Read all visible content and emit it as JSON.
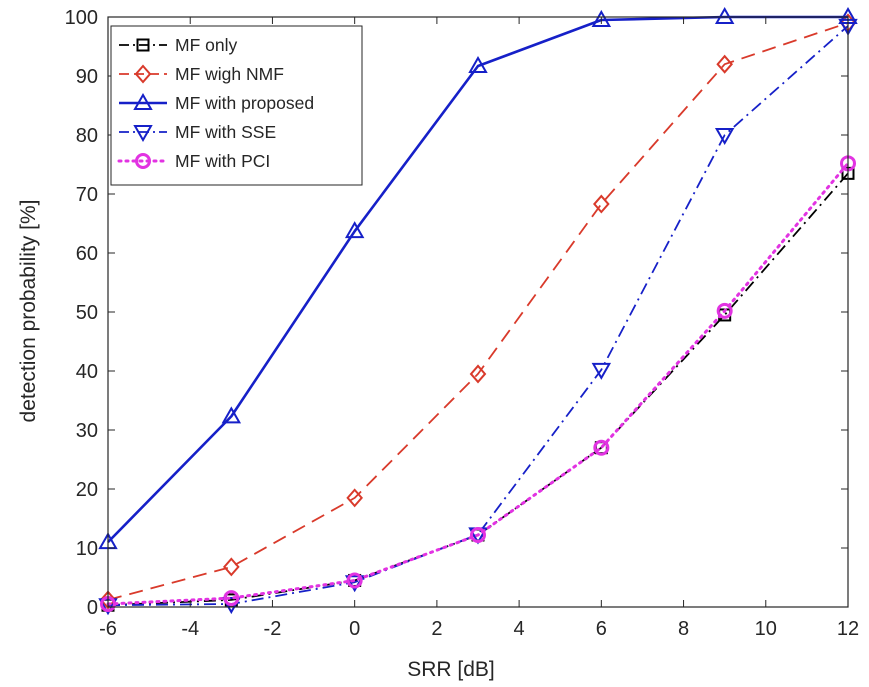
{
  "chart_data": {
    "type": "line",
    "title": "",
    "xlabel": "SRR [dB]",
    "ylabel": "detection probability [%]",
    "xlim": [
      -6,
      12
    ],
    "ylim": [
      0,
      100
    ],
    "grid": false,
    "legend_position": "top-left",
    "x": [
      -6,
      -3,
      0,
      3,
      6,
      9,
      12
    ],
    "xticks": [
      "-6",
      "-4",
      "-2",
      "0",
      "2",
      "4",
      "6",
      "8",
      "10",
      "12"
    ],
    "yticks": [
      "0",
      "10",
      "20",
      "30",
      "40",
      "50",
      "60",
      "70",
      "80",
      "90",
      "100"
    ],
    "series": [
      {
        "name": "MF only",
        "color": "#000000",
        "marker": "square",
        "line": "dashdot",
        "values": [
          0.3,
          1.2,
          4.5,
          12.2,
          27.0,
          49.5,
          73.5
        ]
      },
      {
        "name": "MF wigh NMF",
        "color": "#d93a2b",
        "marker": "diamond",
        "line": "dashed",
        "values": [
          1.2,
          6.8,
          18.5,
          39.5,
          68.3,
          92.0,
          99.0
        ]
      },
      {
        "name": "MF with proposed",
        "color": "#1620c8",
        "marker": "triangle-up",
        "line": "solid",
        "values": [
          11.0,
          32.3,
          63.7,
          91.7,
          99.5,
          100.0,
          100.0
        ]
      },
      {
        "name": "MF with SSE",
        "color": "#1620c8",
        "marker": "triangle-down",
        "line": "dashdot",
        "values": [
          0.3,
          0.5,
          4.2,
          12.3,
          40.2,
          80.0,
          98.5
        ]
      },
      {
        "name": "MF with PCI",
        "color": "#e233e2",
        "marker": "circle",
        "line": "dotted",
        "values": [
          0.5,
          1.5,
          4.5,
          12.2,
          27.0,
          50.2,
          75.2
        ]
      }
    ]
  }
}
